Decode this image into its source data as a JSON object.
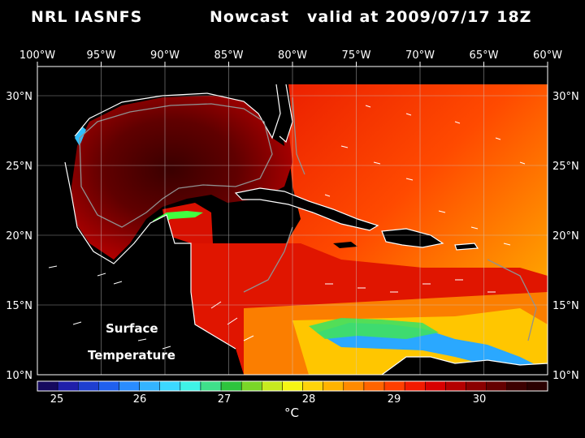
{
  "header": {
    "model": "NRL IASNFS",
    "product": "Nowcast",
    "valid": "valid at 2009/07/17 18Z"
  },
  "top_lon_labels": [
    "100°W",
    "95°W",
    "90°W",
    "85°W",
    "80°W",
    "75°W",
    "70°W",
    "65°W",
    "60°W"
  ],
  "left_lat_labels": [
    "30°N",
    "25°N",
    "20°N",
    "15°N",
    "10°N"
  ],
  "right_lat_labels": [
    "30°N",
    "25°N",
    "20°N",
    "15°N",
    "10°N"
  ],
  "annotation": {
    "line1": "Surface",
    "line2": "Temperature"
  },
  "colorbar": {
    "ticks": [
      "25",
      "26",
      "27",
      "28",
      "29",
      "30"
    ],
    "unit": "°C",
    "colors": [
      "#160a5e",
      "#1f1faa",
      "#1e3fd0",
      "#2060ee",
      "#2a8cff",
      "#34b3ff",
      "#3cd8ff",
      "#3ff2e6",
      "#3fe08a",
      "#2ec43d",
      "#7ad628",
      "#c7ea1f",
      "#f6f514",
      "#ffd30a",
      "#ffb300",
      "#ff8a00",
      "#ff6400",
      "#ff3f00",
      "#f21a00",
      "#d80000",
      "#b40000",
      "#8a0000",
      "#640000",
      "#3c0000",
      "#2a0000"
    ]
  },
  "map_colors": {
    "ocean_hot": "#8b0000",
    "ocean_mid": "#e01000",
    "ocean_warm": "#ff5a00",
    "ocean_cool": "#ffd000",
    "upwelling": "#28b4ff"
  }
}
